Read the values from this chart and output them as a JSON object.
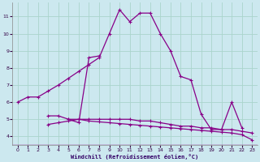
{
  "xlabel": "Windchill (Refroidissement éolien,°C)",
  "background_color": "#cce8ef",
  "grid_color": "#aad4cc",
  "line_color": "#880088",
  "xlim": [
    -0.5,
    23.5
  ],
  "ylim": [
    3.5,
    11.8
  ],
  "yticks": [
    4,
    5,
    6,
    7,
    8,
    9,
    10,
    11
  ],
  "xticks": [
    0,
    1,
    2,
    3,
    4,
    5,
    6,
    7,
    8,
    9,
    10,
    11,
    12,
    13,
    14,
    15,
    16,
    17,
    18,
    19,
    20,
    21,
    22,
    23
  ],
  "line1_x": [
    0,
    1,
    2,
    3,
    4,
    5,
    6,
    7,
    8,
    9,
    10,
    11,
    12,
    13,
    14,
    15,
    16,
    17,
    18,
    19,
    20,
    21,
    22,
    23
  ],
  "line1_y": [
    6.0,
    6.3,
    6.3,
    6.65,
    7.0,
    7.4,
    7.8,
    8.2,
    8.6,
    10.0,
    11.4,
    10.7,
    11.2,
    11.2,
    10.0,
    9.0,
    7.5,
    7.3,
    5.3,
    4.4,
    4.4,
    6.0,
    4.5,
    null
  ],
  "line2_x": [
    3,
    4,
    5,
    6,
    7,
    8
  ],
  "line2_y": [
    5.2,
    5.2,
    5.0,
    4.8,
    8.6,
    8.7
  ],
  "line3_x": [
    3,
    4,
    5,
    6,
    7,
    8,
    9,
    10,
    11,
    12,
    13,
    14,
    15,
    16,
    17,
    18,
    19,
    20,
    21,
    22,
    23
  ],
  "line3_y": [
    4.7,
    4.8,
    4.9,
    5.0,
    5.0,
    5.0,
    5.0,
    5.0,
    5.0,
    4.9,
    4.9,
    4.8,
    4.7,
    4.6,
    4.6,
    4.5,
    4.5,
    4.4,
    4.4,
    4.3,
    4.2
  ],
  "line4_x": [
    5,
    6,
    7,
    8,
    9,
    10,
    11,
    12,
    13,
    14,
    15,
    16,
    17,
    18,
    19,
    20,
    21,
    22,
    23
  ],
  "line4_y": [
    5.0,
    5.0,
    4.9,
    4.85,
    4.8,
    4.75,
    4.7,
    4.65,
    4.6,
    4.55,
    4.5,
    4.45,
    4.4,
    4.35,
    4.3,
    4.25,
    4.2,
    4.1,
    3.8
  ]
}
